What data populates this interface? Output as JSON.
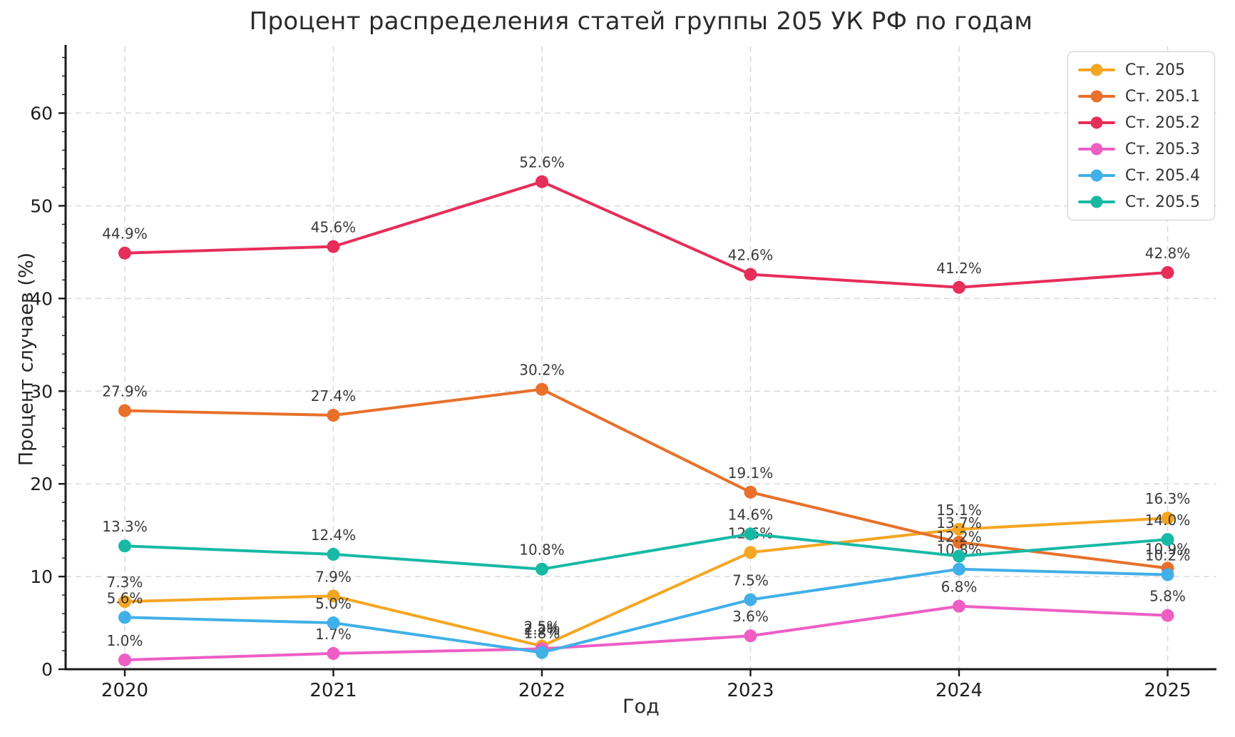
{
  "chart_data": {
    "type": "line",
    "title": "Процент распределения статей группы 205 УК РФ по годам",
    "xlabel": "Год",
    "ylabel": "Процент случаев (%)",
    "categories": [
      "2020",
      "2021",
      "2022",
      "2023",
      "2024",
      "2025"
    ],
    "yticks": [
      0,
      10,
      20,
      30,
      40,
      50,
      60
    ],
    "ylim": [
      0,
      67.2
    ],
    "grid": "dashed both axes",
    "legend_position": "upper right",
    "point_label_format": "{value:.1f}%",
    "series": [
      {
        "name": "Ст. 205",
        "color": "#F5A623",
        "values": [
          7.3,
          7.9,
          2.5,
          12.6,
          15.1,
          16.3
        ]
      },
      {
        "name": "Ст. 205.1",
        "color": "#E8702A",
        "values": [
          27.9,
          27.4,
          30.2,
          19.1,
          13.7,
          10.9
        ]
      },
      {
        "name": "Ст. 205.2",
        "color": "#E62E5A",
        "values": [
          44.9,
          45.6,
          52.6,
          42.6,
          41.2,
          42.8
        ]
      },
      {
        "name": "Ст. 205.3",
        "color": "#EE5EC5",
        "values": [
          1.0,
          1.7,
          2.2,
          3.6,
          6.8,
          5.8
        ]
      },
      {
        "name": "Ст. 205.4",
        "color": "#41B0E8",
        "values": [
          5.6,
          5.0,
          1.8,
          7.5,
          10.8,
          10.2
        ]
      },
      {
        "name": "Ст. 205.5",
        "color": "#17B9A5",
        "values": [
          13.3,
          12.4,
          10.8,
          14.6,
          12.2,
          14.0
        ]
      }
    ],
    "style": {
      "grid_color": "#d9d9d9",
      "spine_color": "#1a1a1a",
      "tick_label_color": "#1f1f1f",
      "point_label_color": "#3a3a3a",
      "background": "#ffffff"
    }
  }
}
